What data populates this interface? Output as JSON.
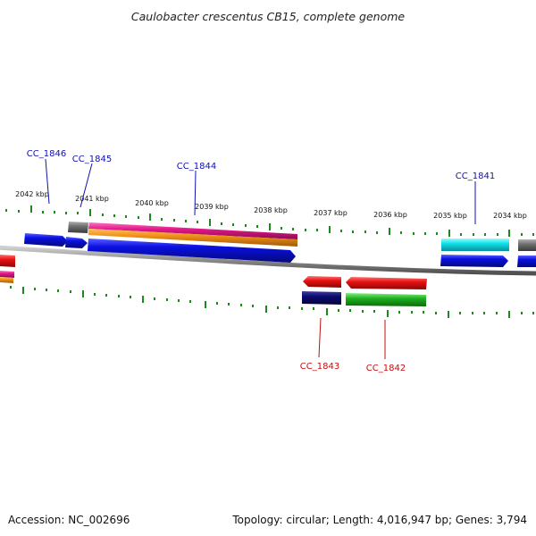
{
  "title": "Caulobacter crescentus CB15, complete genome",
  "footer": {
    "accession": "Accession: NC_002696",
    "summary": "Topology: circular; Length: 4,016,947 bp; Genes: 3,794"
  },
  "kbp_labels": [
    "2042 kbp",
    "2041 kbp",
    "2040 kbp",
    "2039 kbp",
    "2038 kbp",
    "2037 kbp",
    "2036 kbp",
    "2035 kbp",
    "2034 kbp"
  ],
  "genes_top": [
    "CC_1846",
    "CC_1845",
    "CC_1844",
    "CC_1841"
  ],
  "genes_bottom": [
    "CC_1843",
    "CC_1842"
  ],
  "colors": {
    "tick": "#1a8a1a",
    "backbone": "#8a8a8a",
    "label_top": "#1010b0",
    "label_bottom": "#c01010",
    "feature_blue": "#0a10e0",
    "feature_grey": "#707070",
    "feature_magenta": "#e0188a",
    "feature_orange": "#f09018",
    "feature_cyan": "#10e0e8",
    "feature_red": "#e81010",
    "feature_navy": "#0a0a70",
    "feature_green": "#20b020"
  }
}
